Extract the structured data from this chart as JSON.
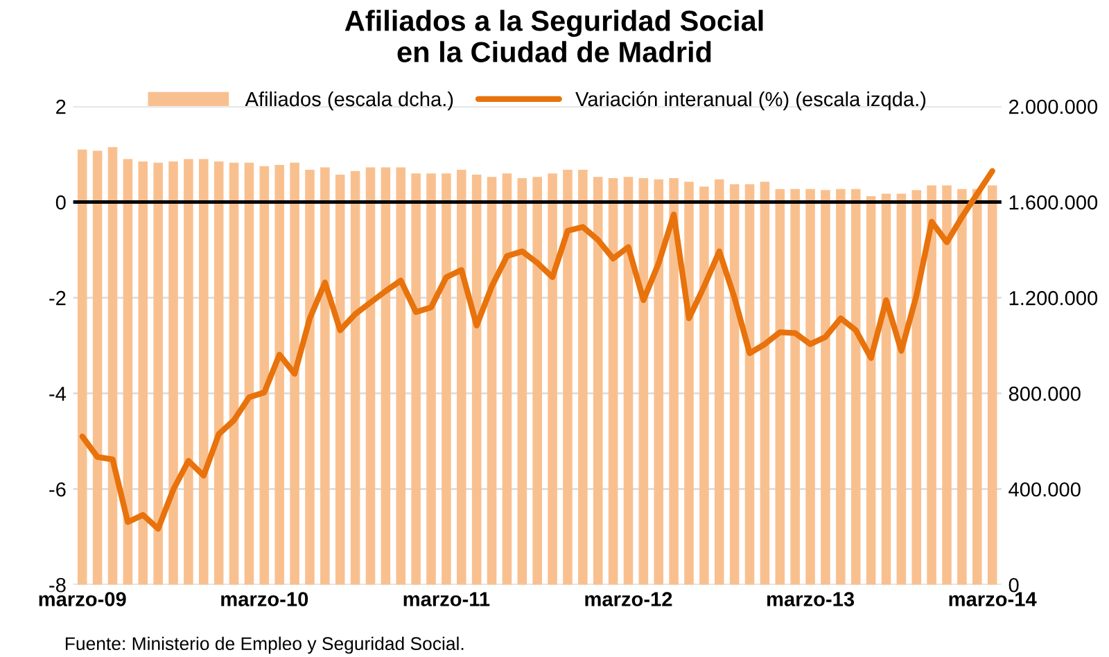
{
  "chart_data": {
    "type": "bar",
    "title": "Afiliados a la Seguridad Social\nen la Ciudad de Madrid",
    "categories": [
      "marzo-09",
      null,
      null,
      null,
      null,
      null,
      null,
      null,
      null,
      null,
      null,
      null,
      "marzo-10",
      null,
      null,
      null,
      null,
      null,
      null,
      null,
      null,
      null,
      null,
      null,
      "marzo-11",
      null,
      null,
      null,
      null,
      null,
      null,
      null,
      null,
      null,
      null,
      null,
      "marzo-12",
      null,
      null,
      null,
      null,
      null,
      null,
      null,
      null,
      null,
      null,
      null,
      "marzo-13",
      null,
      null,
      null,
      null,
      null,
      null,
      null,
      null,
      null,
      null,
      null,
      "marzo-14"
    ],
    "series": [
      {
        "name": "Afiliados (escala dcha.)",
        "axis": "y2",
        "color": "#f9c08f",
        "values": [
          1820000,
          1815000,
          1830000,
          1780000,
          1770000,
          1765000,
          1770000,
          1780000,
          1780000,
          1770000,
          1765000,
          1765000,
          1750000,
          1755000,
          1765000,
          1735000,
          1745000,
          1715000,
          1730000,
          1745000,
          1745000,
          1745000,
          1720000,
          1720000,
          1720000,
          1735000,
          1715000,
          1705000,
          1720000,
          1700000,
          1705000,
          1720000,
          1735000,
          1735000,
          1705000,
          1700000,
          1705000,
          1700000,
          1695000,
          1700000,
          1685000,
          1665000,
          1695000,
          1675000,
          1675000,
          1685000,
          1655000,
          1655000,
          1655000,
          1650000,
          1655000,
          1655000,
          1625000,
          1635000,
          1635000,
          1650000,
          1670000,
          1670000,
          1655000,
          1655000,
          1670000
        ]
      },
      {
        "name": "Variación interanual (%) (escala izqda.)",
        "type": "line",
        "axis": "y",
        "color": "#e8720c",
        "values": [
          -4.9,
          -5.33,
          -5.38,
          -6.69,
          -6.54,
          -6.83,
          -6.01,
          -5.41,
          -5.72,
          -4.85,
          -4.56,
          -4.08,
          -3.98,
          -3.19,
          -3.59,
          -2.43,
          -1.68,
          -2.68,
          -2.34,
          -2.1,
          -1.86,
          -1.64,
          -2.3,
          -2.2,
          -1.57,
          -1.42,
          -2.58,
          -1.76,
          -1.13,
          -1.03,
          -1.27,
          -1.57,
          -0.6,
          -0.52,
          -0.79,
          -1.18,
          -0.94,
          -2.05,
          -1.28,
          -0.26,
          -2.43,
          -1.76,
          -1.03,
          -2.0,
          -3.16,
          -2.97,
          -2.72,
          -2.74,
          -2.97,
          -2.82,
          -2.43,
          -2.68,
          -3.26,
          -2.05,
          -3.11,
          -1.95,
          -0.41,
          -0.84,
          -0.31,
          0.17,
          0.65
        ]
      }
    ],
    "ylim": [
      -8,
      2
    ],
    "yticks": [
      -8,
      -6,
      -4,
      -2,
      0,
      2
    ],
    "y2lim": [
      0,
      2000000
    ],
    "y2ticks": [
      0,
      {
        "value": 400000,
        "label": "400.000"
      },
      {
        "value": 800000,
        "label": "800.000"
      },
      {
        "value": 1200000,
        "label": "1.200.000"
      },
      {
        "value": 1600000,
        "label": "1.600.000"
      },
      {
        "value": 2000000,
        "label": "2.000.000"
      }
    ],
    "ref_lines": [
      {
        "axis": "y",
        "value": 0,
        "color": "#000000"
      }
    ],
    "grid": "y",
    "legend": "top",
    "annotations": [
      "Fuente: Ministerio de Empleo y Seguridad Social."
    ]
  }
}
